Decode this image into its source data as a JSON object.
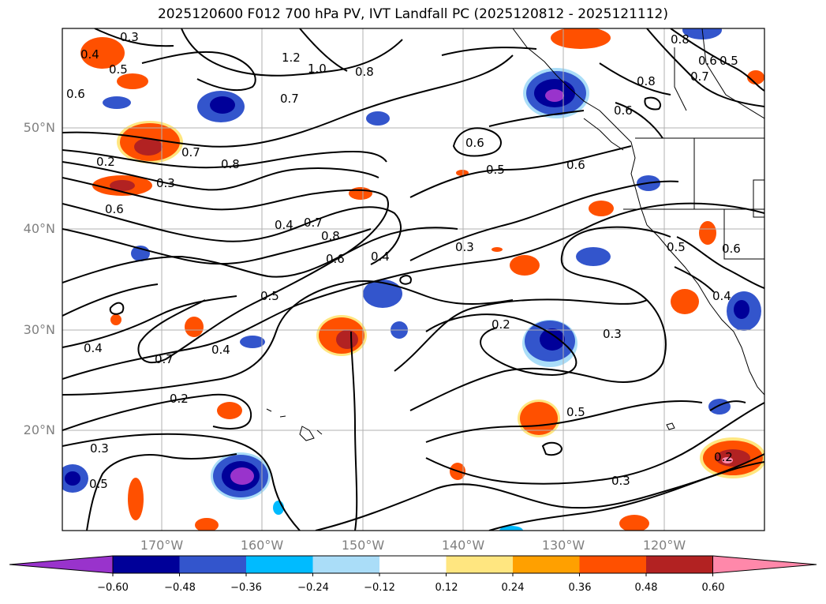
{
  "title": "2025120600 F012 700 hPa PV, IVT Landfall PC (2025120812 - 2025121112)",
  "lat_labels": [
    "50°N",
    "40°N",
    "30°N",
    "20°N"
  ],
  "lon_labels": [
    "170°W",
    "160°W",
    "150°W",
    "140°W",
    "130°W",
    "120°W"
  ],
  "colorbar": {
    "ticks": [
      "−0.60",
      "−0.48",
      "−0.36",
      "−0.24",
      "−0.12",
      "0.12",
      "0.24",
      "0.36",
      "0.48",
      "0.60"
    ],
    "colors": [
      "#9933cc",
      "#000099",
      "#3355cc",
      "#00bbff",
      "#aaddf8",
      "#ffffff",
      "#ffe680",
      "#ffa000",
      "#ff5000",
      "#b22222",
      "#ff88aa"
    ]
  },
  "contour_labels": [
    "0.3",
    "0.4",
    "0.5",
    "0.6",
    "0.7",
    "0.8",
    "1.0",
    "1.2",
    "0.2"
  ]
}
